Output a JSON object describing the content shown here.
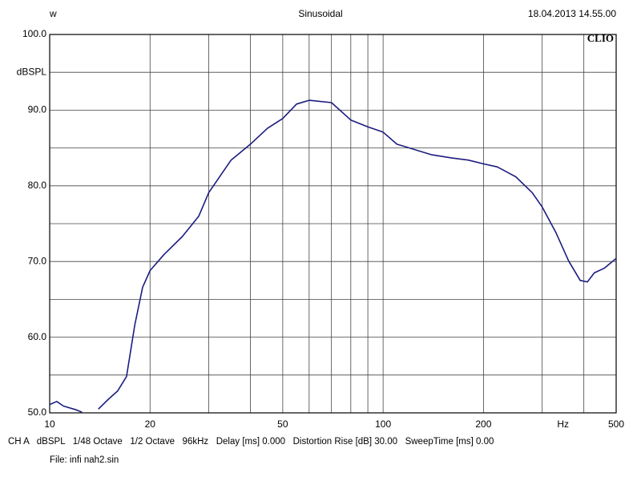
{
  "chart_data": {
    "type": "line",
    "title": "Sinusoidal",
    "label_left": "w",
    "timestamp": "18.04.2013 14.55.00",
    "brand": "CLIO",
    "y_label": "dBSPL",
    "x_label": "Hz",
    "footer": [
      "CH A   dBSPL   1/48 Octave   1/2 Octave   96kHz   Delay [ms] 0.000   Distortion Rise [dB] 30.00   SweepTime [ms] 0.00",
      "File: infi nah2.sin"
    ],
    "x_scale": "log",
    "xlim": [
      10,
      500
    ],
    "xticks": [
      10,
      20,
      50,
      100,
      200,
      500
    ],
    "xminor_ticks": [
      30,
      40,
      60,
      70,
      80,
      90,
      300,
      400
    ],
    "ylim": [
      50,
      100
    ],
    "yticks": [
      {
        "value": 50,
        "label": "50.0"
      },
      {
        "value": 60,
        "label": "60.0"
      },
      {
        "value": 70,
        "label": "70.0"
      },
      {
        "value": 80,
        "label": "80.0"
      },
      {
        "value": 90,
        "label": "90.0"
      },
      {
        "value": 100,
        "label": "100.0"
      }
    ],
    "yminor_ticks": [
      55,
      65,
      75,
      85,
      95
    ],
    "grid": true,
    "x": [
      10,
      10.5,
      11,
      12,
      12.5,
      13,
      14,
      15,
      16,
      17,
      18,
      19,
      20,
      22,
      25,
      28,
      30,
      35,
      40,
      45,
      50,
      55,
      60,
      70,
      80,
      90,
      100,
      110,
      120,
      140,
      160,
      180,
      200,
      220,
      250,
      280,
      300,
      330,
      360,
      390,
      410,
      430,
      460,
      500
    ],
    "series": [
      {
        "name": "dBSPL",
        "color": "#1c1c80",
        "values": [
          51.1,
          51.5,
          50.9,
          50.4,
          50.1,
          null,
          50.5,
          51.8,
          52.9,
          54.8,
          61.6,
          66.6,
          68.8,
          70.9,
          73.3,
          76.0,
          79.1,
          83.4,
          85.5,
          87.6,
          88.9,
          90.8,
          91.3,
          91.0,
          88.7,
          87.8,
          87.1,
          85.5,
          85.0,
          84.1,
          83.7,
          83.4,
          82.9,
          82.5,
          81.2,
          79.1,
          77.2,
          73.8,
          70.1,
          67.5,
          67.3,
          68.5,
          69.1,
          70.4
        ]
      }
    ]
  }
}
